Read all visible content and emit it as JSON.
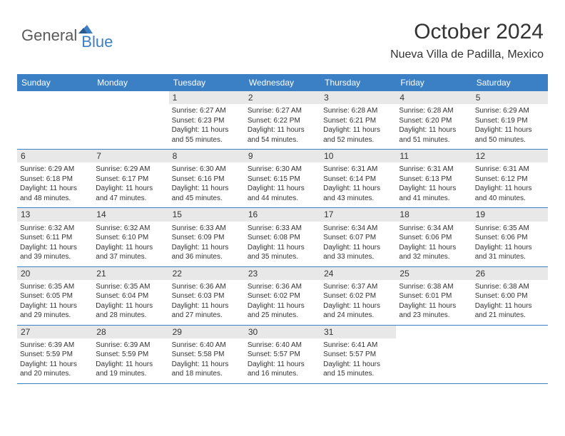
{
  "brand": {
    "name1": "General",
    "name2": "Blue"
  },
  "title": "October 2024",
  "location": "Nueva Villa de Padilla, Mexico",
  "colors": {
    "header_bg": "#3b7fc4",
    "header_text": "#ffffff",
    "daynum_bg": "#e8e8e8",
    "border": "#3b7fc4",
    "logo_gray": "#5a5a5a",
    "logo_blue": "#3b7fc4",
    "body_text": "#333333",
    "background": "#ffffff"
  },
  "day_headers": [
    "Sunday",
    "Monday",
    "Tuesday",
    "Wednesday",
    "Thursday",
    "Friday",
    "Saturday"
  ],
  "weeks": [
    [
      {
        "num": "",
        "sunrise": "",
        "sunset": "",
        "daylight": ""
      },
      {
        "num": "",
        "sunrise": "",
        "sunset": "",
        "daylight": ""
      },
      {
        "num": "1",
        "sunrise": "Sunrise: 6:27 AM",
        "sunset": "Sunset: 6:23 PM",
        "daylight": "Daylight: 11 hours and 55 minutes."
      },
      {
        "num": "2",
        "sunrise": "Sunrise: 6:27 AM",
        "sunset": "Sunset: 6:22 PM",
        "daylight": "Daylight: 11 hours and 54 minutes."
      },
      {
        "num": "3",
        "sunrise": "Sunrise: 6:28 AM",
        "sunset": "Sunset: 6:21 PM",
        "daylight": "Daylight: 11 hours and 52 minutes."
      },
      {
        "num": "4",
        "sunrise": "Sunrise: 6:28 AM",
        "sunset": "Sunset: 6:20 PM",
        "daylight": "Daylight: 11 hours and 51 minutes."
      },
      {
        "num": "5",
        "sunrise": "Sunrise: 6:29 AM",
        "sunset": "Sunset: 6:19 PM",
        "daylight": "Daylight: 11 hours and 50 minutes."
      }
    ],
    [
      {
        "num": "6",
        "sunrise": "Sunrise: 6:29 AM",
        "sunset": "Sunset: 6:18 PM",
        "daylight": "Daylight: 11 hours and 48 minutes."
      },
      {
        "num": "7",
        "sunrise": "Sunrise: 6:29 AM",
        "sunset": "Sunset: 6:17 PM",
        "daylight": "Daylight: 11 hours and 47 minutes."
      },
      {
        "num": "8",
        "sunrise": "Sunrise: 6:30 AM",
        "sunset": "Sunset: 6:16 PM",
        "daylight": "Daylight: 11 hours and 45 minutes."
      },
      {
        "num": "9",
        "sunrise": "Sunrise: 6:30 AM",
        "sunset": "Sunset: 6:15 PM",
        "daylight": "Daylight: 11 hours and 44 minutes."
      },
      {
        "num": "10",
        "sunrise": "Sunrise: 6:31 AM",
        "sunset": "Sunset: 6:14 PM",
        "daylight": "Daylight: 11 hours and 43 minutes."
      },
      {
        "num": "11",
        "sunrise": "Sunrise: 6:31 AM",
        "sunset": "Sunset: 6:13 PM",
        "daylight": "Daylight: 11 hours and 41 minutes."
      },
      {
        "num": "12",
        "sunrise": "Sunrise: 6:31 AM",
        "sunset": "Sunset: 6:12 PM",
        "daylight": "Daylight: 11 hours and 40 minutes."
      }
    ],
    [
      {
        "num": "13",
        "sunrise": "Sunrise: 6:32 AM",
        "sunset": "Sunset: 6:11 PM",
        "daylight": "Daylight: 11 hours and 39 minutes."
      },
      {
        "num": "14",
        "sunrise": "Sunrise: 6:32 AM",
        "sunset": "Sunset: 6:10 PM",
        "daylight": "Daylight: 11 hours and 37 minutes."
      },
      {
        "num": "15",
        "sunrise": "Sunrise: 6:33 AM",
        "sunset": "Sunset: 6:09 PM",
        "daylight": "Daylight: 11 hours and 36 minutes."
      },
      {
        "num": "16",
        "sunrise": "Sunrise: 6:33 AM",
        "sunset": "Sunset: 6:08 PM",
        "daylight": "Daylight: 11 hours and 35 minutes."
      },
      {
        "num": "17",
        "sunrise": "Sunrise: 6:34 AM",
        "sunset": "Sunset: 6:07 PM",
        "daylight": "Daylight: 11 hours and 33 minutes."
      },
      {
        "num": "18",
        "sunrise": "Sunrise: 6:34 AM",
        "sunset": "Sunset: 6:06 PM",
        "daylight": "Daylight: 11 hours and 32 minutes."
      },
      {
        "num": "19",
        "sunrise": "Sunrise: 6:35 AM",
        "sunset": "Sunset: 6:06 PM",
        "daylight": "Daylight: 11 hours and 31 minutes."
      }
    ],
    [
      {
        "num": "20",
        "sunrise": "Sunrise: 6:35 AM",
        "sunset": "Sunset: 6:05 PM",
        "daylight": "Daylight: 11 hours and 29 minutes."
      },
      {
        "num": "21",
        "sunrise": "Sunrise: 6:35 AM",
        "sunset": "Sunset: 6:04 PM",
        "daylight": "Daylight: 11 hours and 28 minutes."
      },
      {
        "num": "22",
        "sunrise": "Sunrise: 6:36 AM",
        "sunset": "Sunset: 6:03 PM",
        "daylight": "Daylight: 11 hours and 27 minutes."
      },
      {
        "num": "23",
        "sunrise": "Sunrise: 6:36 AM",
        "sunset": "Sunset: 6:02 PM",
        "daylight": "Daylight: 11 hours and 25 minutes."
      },
      {
        "num": "24",
        "sunrise": "Sunrise: 6:37 AM",
        "sunset": "Sunset: 6:02 PM",
        "daylight": "Daylight: 11 hours and 24 minutes."
      },
      {
        "num": "25",
        "sunrise": "Sunrise: 6:38 AM",
        "sunset": "Sunset: 6:01 PM",
        "daylight": "Daylight: 11 hours and 23 minutes."
      },
      {
        "num": "26",
        "sunrise": "Sunrise: 6:38 AM",
        "sunset": "Sunset: 6:00 PM",
        "daylight": "Daylight: 11 hours and 21 minutes."
      }
    ],
    [
      {
        "num": "27",
        "sunrise": "Sunrise: 6:39 AM",
        "sunset": "Sunset: 5:59 PM",
        "daylight": "Daylight: 11 hours and 20 minutes."
      },
      {
        "num": "28",
        "sunrise": "Sunrise: 6:39 AM",
        "sunset": "Sunset: 5:59 PM",
        "daylight": "Daylight: 11 hours and 19 minutes."
      },
      {
        "num": "29",
        "sunrise": "Sunrise: 6:40 AM",
        "sunset": "Sunset: 5:58 PM",
        "daylight": "Daylight: 11 hours and 18 minutes."
      },
      {
        "num": "30",
        "sunrise": "Sunrise: 6:40 AM",
        "sunset": "Sunset: 5:57 PM",
        "daylight": "Daylight: 11 hours and 16 minutes."
      },
      {
        "num": "31",
        "sunrise": "Sunrise: 6:41 AM",
        "sunset": "Sunset: 5:57 PM",
        "daylight": "Daylight: 11 hours and 15 minutes."
      },
      {
        "num": "",
        "sunrise": "",
        "sunset": "",
        "daylight": ""
      },
      {
        "num": "",
        "sunrise": "",
        "sunset": "",
        "daylight": ""
      }
    ]
  ]
}
